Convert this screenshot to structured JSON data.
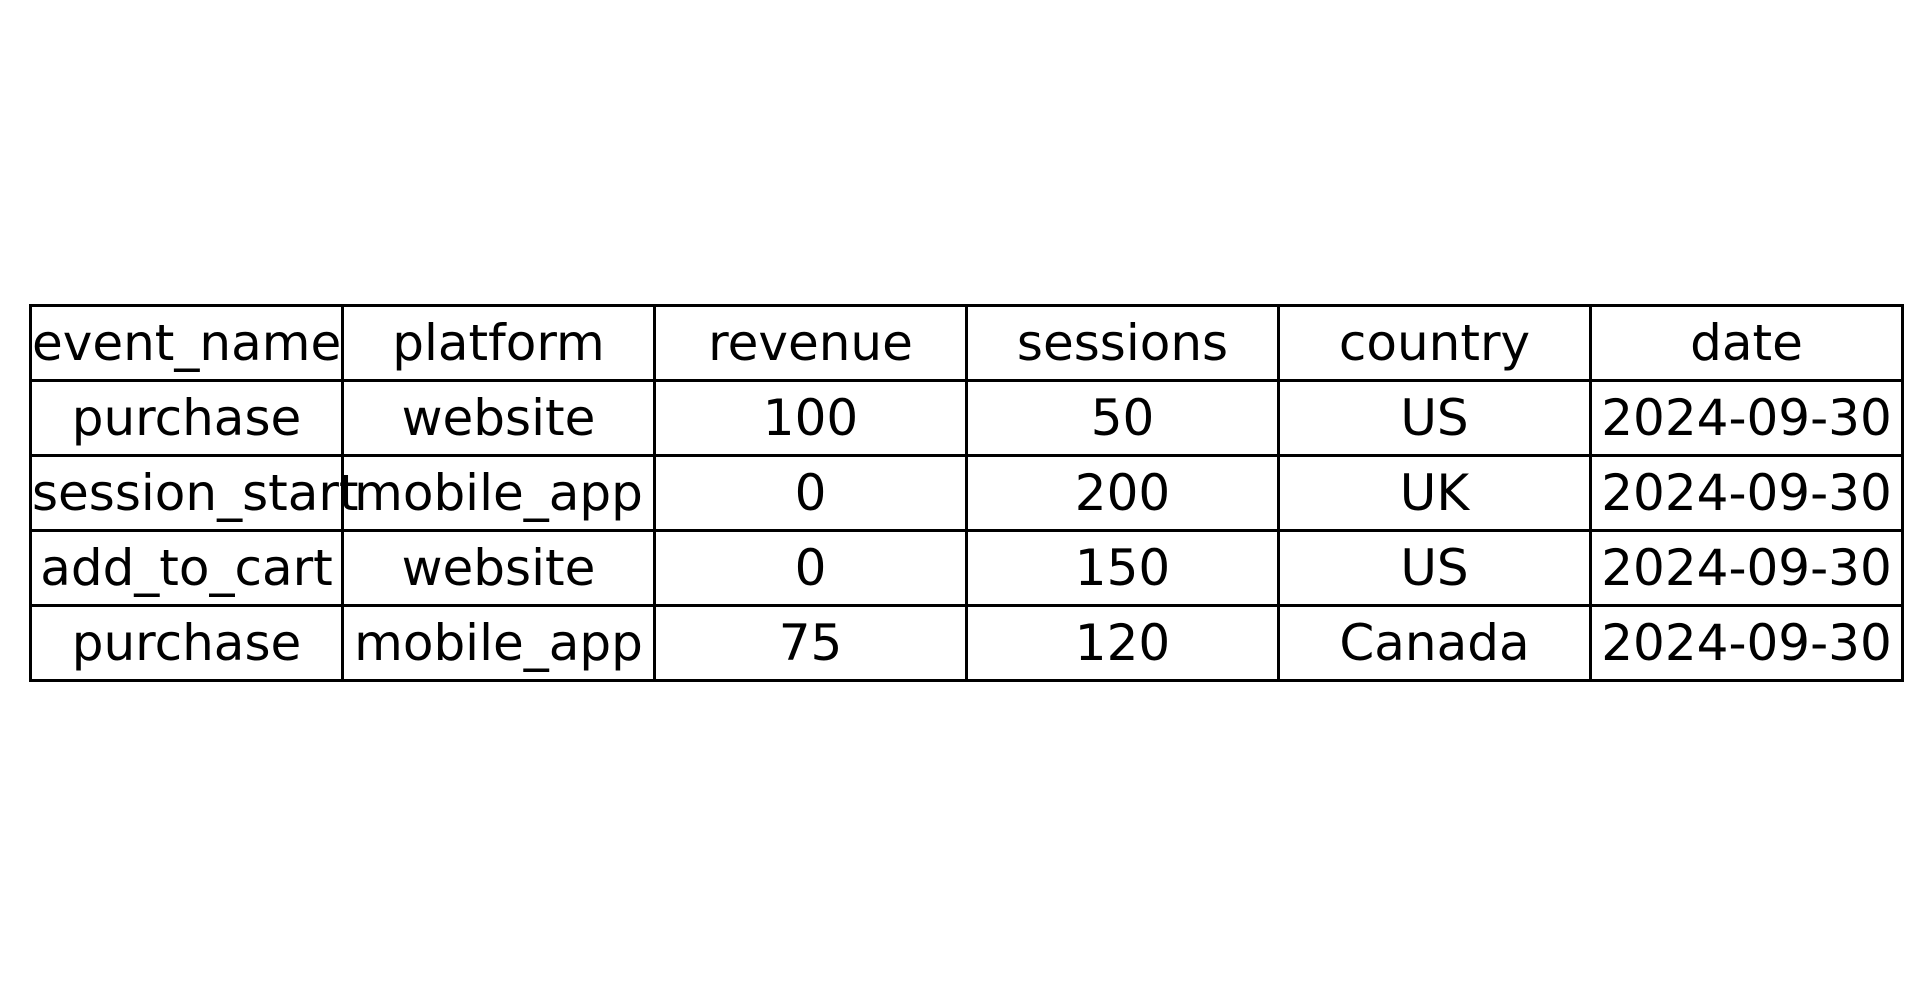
{
  "chart_data": {
    "type": "table",
    "columns": [
      "event_name",
      "platform",
      "revenue",
      "sessions",
      "country",
      "date"
    ],
    "rows": [
      [
        "purchase",
        "website",
        "100",
        "50",
        "US",
        "2024-09-30"
      ],
      [
        "session_start",
        "mobile_app",
        "0",
        "200",
        "UK",
        "2024-09-30"
      ],
      [
        "add_to_cart",
        "website",
        "0",
        "150",
        "US",
        "2024-09-30"
      ],
      [
        "purchase",
        "mobile_app",
        "75",
        "120",
        "Canada",
        "2024-09-30"
      ]
    ],
    "border_color": "#000000",
    "background_color": "#ffffff",
    "text_color": "#000000"
  }
}
